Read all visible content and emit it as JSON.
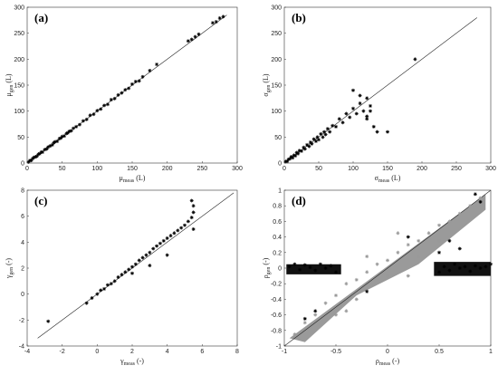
{
  "chart_data": [
    {
      "type": "scatter",
      "panel_label": "(a)",
      "xlabel": "μmeas (L)",
      "ylabel": "μgen (L)",
      "xlim": [
        0,
        300
      ],
      "ylim": [
        0,
        300
      ],
      "xticks": [
        0,
        50,
        100,
        150,
        200,
        250,
        300
      ],
      "yticks": [
        0,
        50,
        100,
        150,
        200,
        250,
        300
      ],
      "reference_line": [
        [
          0,
          0
        ],
        [
          285,
          285
        ]
      ],
      "marker": "*",
      "series": [
        {
          "color": "#000000",
          "points": [
            [
              2,
              2
            ],
            [
              4,
              5
            ],
            [
              6,
              5
            ],
            [
              8,
              9
            ],
            [
              10,
              11
            ],
            [
              12,
              12
            ],
            [
              14,
              13
            ],
            [
              16,
              17
            ],
            [
              18,
              18
            ],
            [
              20,
              21
            ],
            [
              22,
              21
            ],
            [
              25,
              26
            ],
            [
              28,
              27
            ],
            [
              30,
              31
            ],
            [
              33,
              33
            ],
            [
              36,
              35
            ],
            [
              38,
              39
            ],
            [
              40,
              41
            ],
            [
              43,
              42
            ],
            [
              46,
              47
            ],
            [
              48,
              48
            ],
            [
              50,
              51
            ],
            [
              53,
              52
            ],
            [
              56,
              57
            ],
            [
              58,
              58
            ],
            [
              60,
              61
            ],
            [
              63,
              62
            ],
            [
              66,
              67
            ],
            [
              70,
              70
            ],
            [
              75,
              74
            ],
            [
              80,
              81
            ],
            [
              85,
              84
            ],
            [
              90,
              92
            ],
            [
              95,
              94
            ],
            [
              100,
              101
            ],
            [
              105,
              104
            ],
            [
              110,
              111
            ],
            [
              115,
              113
            ],
            [
              120,
              122
            ],
            [
              125,
              124
            ],
            [
              130,
              131
            ],
            [
              135,
              135
            ],
            [
              140,
              141
            ],
            [
              145,
              144
            ],
            [
              150,
              152
            ],
            [
              155,
              157
            ],
            [
              160,
              158
            ],
            [
              165,
              166
            ],
            [
              175,
              178
            ],
            [
              185,
              190
            ],
            [
              230,
              235
            ],
            [
              235,
              238
            ],
            [
              240,
              243
            ],
            [
              245,
              248
            ],
            [
              265,
              270
            ],
            [
              270,
              272
            ],
            [
              275,
              279
            ],
            [
              280,
              282
            ]
          ]
        }
      ]
    },
    {
      "type": "scatter",
      "panel_label": "(b)",
      "xlabel": "σmeas (L)",
      "ylabel": "σgen (L)",
      "xlim": [
        0,
        300
      ],
      "ylim": [
        0,
        300
      ],
      "xticks": [
        0,
        50,
        100,
        150,
        200,
        250,
        300
      ],
      "yticks": [
        0,
        50,
        100,
        150,
        200,
        250,
        300
      ],
      "reference_line": [
        [
          0,
          0
        ],
        [
          280,
          280
        ]
      ],
      "marker": "*",
      "series": [
        {
          "color": "#000000",
          "points": [
            [
              2,
              3
            ],
            [
              4,
              3
            ],
            [
              6,
              7
            ],
            [
              8,
              8
            ],
            [
              10,
              12
            ],
            [
              12,
              10
            ],
            [
              14,
              15
            ],
            [
              16,
              14
            ],
            [
              18,
              20
            ],
            [
              20,
              18
            ],
            [
              22,
              24
            ],
            [
              25,
              23
            ],
            [
              28,
              30
            ],
            [
              30,
              27
            ],
            [
              33,
              35
            ],
            [
              36,
              32
            ],
            [
              38,
              40
            ],
            [
              40,
              37
            ],
            [
              43,
              46
            ],
            [
              46,
              42
            ],
            [
              48,
              50
            ],
            [
              50,
              45
            ],
            [
              53,
              56
            ],
            [
              56,
              50
            ],
            [
              58,
              60
            ],
            [
              60,
              55
            ],
            [
              63,
              66
            ],
            [
              66,
              60
            ],
            [
              70,
              72
            ],
            [
              75,
              70
            ],
            [
              80,
              85
            ],
            [
              85,
              78
            ],
            [
              90,
              95
            ],
            [
              95,
              88
            ],
            [
              100,
              105
            ],
            [
              105,
              95
            ],
            [
              110,
              115
            ],
            [
              115,
              100
            ],
            [
              120,
              125
            ],
            [
              125,
              110
            ],
            [
              130,
              70
            ],
            [
              135,
              60
            ],
            [
              120,
              85
            ],
            [
              125,
              100
            ],
            [
              150,
              60
            ],
            [
              110,
              130
            ],
            [
              100,
              140
            ],
            [
              120,
              90
            ],
            [
              190,
              200
            ]
          ]
        }
      ]
    },
    {
      "type": "scatter",
      "panel_label": "(c)",
      "xlabel": "γmeas (-)",
      "ylabel": "γgen (-)",
      "xlim": [
        -4,
        8
      ],
      "ylim": [
        -4,
        8
      ],
      "xticks": [
        -4,
        -2,
        0,
        2,
        4,
        6,
        8
      ],
      "yticks": [
        -4,
        -2,
        0,
        2,
        4,
        6,
        8
      ],
      "reference_line": [
        [
          -3.4,
          -3.4
        ],
        [
          7.8,
          7.8
        ]
      ],
      "marker": "*",
      "series": [
        {
          "color": "#000000",
          "points": [
            [
              -2.8,
              -2.1
            ],
            [
              -0.6,
              -0.7
            ],
            [
              -0.3,
              -0.3
            ],
            [
              0,
              0
            ],
            [
              0.2,
              0.3
            ],
            [
              0.4,
              0.4
            ],
            [
              0.6,
              0.7
            ],
            [
              0.8,
              0.8
            ],
            [
              1,
              1
            ],
            [
              1.2,
              1.3
            ],
            [
              1.4,
              1.5
            ],
            [
              1.6,
              1.7
            ],
            [
              1.8,
              1.9
            ],
            [
              2,
              2.1
            ],
            [
              2.2,
              2.3
            ],
            [
              2.4,
              2.6
            ],
            [
              2.6,
              2.8
            ],
            [
              2.8,
              3
            ],
            [
              3,
              3.2
            ],
            [
              3.2,
              3.5
            ],
            [
              3.4,
              3.7
            ],
            [
              3.6,
              3.9
            ],
            [
              3.8,
              4.1
            ],
            [
              4,
              4.3
            ],
            [
              4.2,
              4.5
            ],
            [
              4.4,
              4.7
            ],
            [
              4.6,
              4.9
            ],
            [
              4.8,
              5.1
            ],
            [
              5,
              5.3
            ],
            [
              5.2,
              5.6
            ],
            [
              5.4,
              5.9
            ],
            [
              5.5,
              6.3
            ],
            [
              5.5,
              6.8
            ],
            [
              5.4,
              7.2
            ],
            [
              5.5,
              5
            ],
            [
              4,
              3
            ],
            [
              3,
              2.2
            ],
            [
              2,
              1.6
            ]
          ]
        }
      ]
    },
    {
      "type": "scatter",
      "panel_label": "(d)",
      "xlabel": "ρmeas (-)",
      "ylabel": "ρgen (-)",
      "xlim": [
        -1,
        1
      ],
      "ylim": [
        -1,
        1
      ],
      "xticks": [
        -1,
        -0.5,
        0,
        0.5,
        1
      ],
      "yticks": [
        -1,
        -0.8,
        -0.6,
        -0.4,
        -0.2,
        0,
        0.2,
        0.4,
        0.6,
        0.8,
        1
      ],
      "reference_line": [
        [
          -1,
          -1
        ],
        [
          1,
          1
        ]
      ],
      "marker": "*",
      "series": [
        {
          "color": "#000000",
          "points": [
            [
              -0.95,
              0.02
            ],
            [
              -0.9,
              0.05
            ],
            [
              -0.85,
              -0.02
            ],
            [
              -0.8,
              0.04
            ],
            [
              -0.75,
              0.01
            ],
            [
              -0.7,
              -0.03
            ],
            [
              -0.65,
              0.05
            ],
            [
              -0.6,
              0.0
            ],
            [
              -0.55,
              0.03
            ],
            [
              -0.5,
              -0.05
            ],
            [
              0.5,
              -0.05
            ],
            [
              0.55,
              0.02
            ],
            [
              0.6,
              -0.03
            ],
            [
              0.65,
              0.05
            ],
            [
              0.7,
              0.0
            ],
            [
              0.75,
              0.02
            ],
            [
              0.8,
              -0.04
            ],
            [
              0.85,
              0.03
            ],
            [
              0.9,
              0.0
            ],
            [
              0.95,
              0.02
            ],
            [
              1,
              0.05
            ],
            [
              0.7,
              0.25
            ],
            [
              0.6,
              0.35
            ],
            [
              0.5,
              0.2
            ],
            [
              -0.7,
              -0.55
            ],
            [
              -0.8,
              -0.65
            ],
            [
              0.2,
              0.4
            ],
            [
              -0.2,
              -0.3
            ],
            [
              0.85,
              0.95
            ],
            [
              0.9,
              0.85
            ]
          ]
        },
        {
          "color": "#999999",
          "points": [
            [
              -0.9,
              -0.85
            ],
            [
              -0.8,
              -0.7
            ],
            [
              -0.7,
              -0.6
            ],
            [
              -0.6,
              -0.45
            ],
            [
              -0.5,
              -0.35
            ],
            [
              -0.4,
              -0.2
            ],
            [
              -0.3,
              -0.15
            ],
            [
              -0.2,
              -0.05
            ],
            [
              -0.1,
              0.05
            ],
            [
              0,
              0.1
            ],
            [
              0.1,
              0.2
            ],
            [
              0.2,
              0.3
            ],
            [
              0.3,
              0.35
            ],
            [
              0.4,
              0.45
            ],
            [
              0.5,
              0.55
            ],
            [
              0.6,
              0.6
            ],
            [
              0.7,
              0.7
            ],
            [
              0.8,
              0.8
            ],
            [
              0.9,
              0.9
            ],
            [
              -0.5,
              -0.6
            ],
            [
              -0.3,
              -0.4
            ],
            [
              0,
              -0.1
            ],
            [
              0.3,
              0.15
            ],
            [
              0.5,
              0.35
            ],
            [
              -0.2,
              0.15
            ],
            [
              0.1,
              0.45
            ],
            [
              -0.4,
              -0.55
            ],
            [
              0.2,
              -0.1
            ]
          ]
        }
      ]
    }
  ]
}
